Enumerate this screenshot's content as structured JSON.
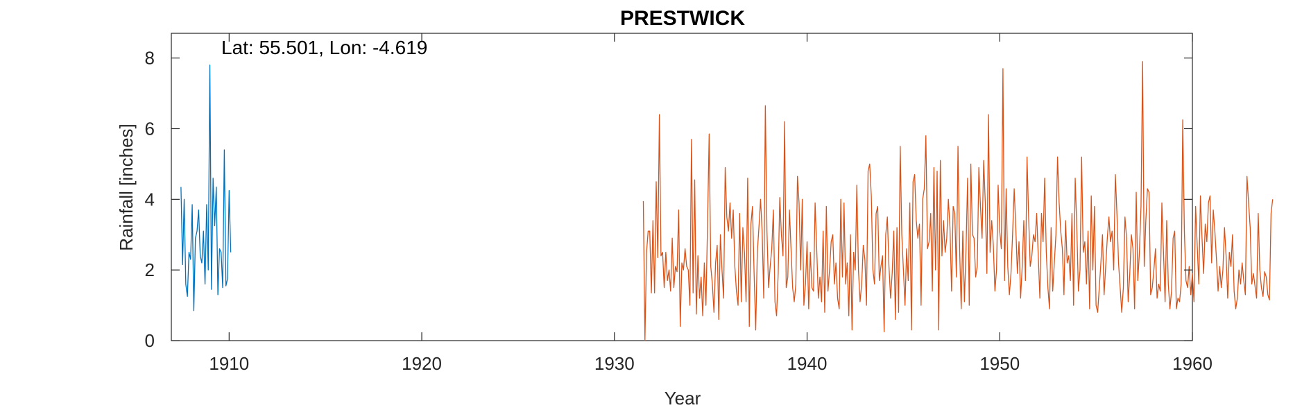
{
  "chart_data": {
    "type": "line",
    "title": "PRESTWICK",
    "xlabel": "Year",
    "ylabel": "Rainfall [inches]",
    "annotation": "Lat: 55.501, Lon: -4.619",
    "xlim": [
      1907,
      1960
    ],
    "ylim": [
      0,
      8.7
    ],
    "xticks": [
      1910,
      1920,
      1930,
      1940,
      1950,
      1960
    ],
    "yticks": [
      0,
      2,
      4,
      6,
      8
    ],
    "grid": false,
    "colors": [
      "#0072BD",
      "#D95319"
    ],
    "series": [
      {
        "x_start": 1907.5,
        "x_step": 0.0833333,
        "values": [
          4.35,
          2.15,
          4.0,
          1.6,
          1.25,
          2.5,
          2.3,
          3.85,
          0.85,
          2.9,
          3.1,
          3.7,
          2.4,
          2.2,
          3.1,
          1.6,
          3.85,
          2.0,
          7.8,
          1.45,
          4.6,
          3.25,
          4.35,
          1.3,
          2.6,
          2.5,
          1.5,
          5.4,
          1.55,
          1.75,
          4.25,
          2.5
        ]
      },
      {
        "x_start": 1931.5,
        "x_step": 0.0833333,
        "values": [
          3.95,
          0.0,
          2.5,
          3.1,
          3.1,
          1.35,
          3.4,
          1.35,
          4.5,
          2.35,
          6.4,
          2.4,
          2.5,
          1.5,
          2.5,
          1.7,
          2.0,
          1.4,
          2.9,
          1.5,
          2.1,
          1.95,
          3.7,
          0.4,
          2.2,
          2.0,
          2.6,
          2.1,
          2.0,
          1.0,
          5.7,
          1.35,
          4.55,
          0.75,
          2.4,
          1.2,
          1.8,
          0.7,
          2.2,
          1.0,
          3.3,
          5.85,
          2.1,
          1.6,
          0.8,
          2.2,
          2.7,
          0.6,
          3.0,
          2.0,
          1.2,
          4.9,
          3.5,
          3.1,
          3.9,
          2.9,
          3.7,
          2.1,
          1.4,
          1.0,
          3.6,
          1.1,
          3.2,
          2.5,
          1.1,
          4.6,
          0.4,
          3.3,
          3.8,
          1.9,
          0.3,
          2.5,
          3.2,
          4.0,
          3.1,
          1.2,
          6.65,
          3.1,
          1.5,
          2.1,
          2.6,
          3.7,
          1.1,
          0.7,
          1.9,
          4.05,
          3.0,
          2.4,
          6.2,
          1.5,
          1.8,
          3.7,
          2.6,
          1.5,
          1.1,
          1.6,
          4.65,
          3.9,
          2.0,
          4.0,
          1.0,
          1.6,
          2.8,
          0.9,
          2.5,
          1.5,
          1.4,
          3.9,
          2.6,
          1.2,
          1.8,
          1.1,
          3.1,
          0.8,
          3.8,
          1.4,
          2.0,
          2.8,
          3.0,
          1.6,
          2.2,
          1.2,
          0.9,
          4.0,
          1.8,
          3.9,
          1.6,
          2.2,
          0.7,
          3.0,
          0.3,
          2.5,
          2.0,
          4.4,
          2.0,
          1.1,
          1.6,
          2.7,
          2.3,
          1.0,
          4.8,
          5.0,
          4.1,
          2.0,
          1.6,
          3.6,
          3.8,
          1.7,
          2.1,
          2.4,
          0.25,
          3.0,
          3.5,
          2.1,
          1.2,
          1.9,
          3.1,
          0.6,
          3.2,
          0.8,
          5.5,
          3.0,
          2.0,
          1.0,
          2.6,
          1.7,
          3.9,
          0.3,
          4.5,
          4.7,
          3.4,
          2.9,
          3.3,
          1.0,
          4.0,
          4.3,
          5.8,
          2.6,
          2.8,
          3.6,
          1.4,
          4.9,
          2.0,
          4.8,
          0.3,
          5.1,
          2.4,
          3.4,
          2.5,
          2.9,
          4.0,
          3.2,
          1.4,
          3.8,
          3.6,
          1.8,
          5.5,
          2.6,
          0.9,
          3.1,
          1.1,
          2.6,
          4.6,
          1.0,
          5.0,
          3.0,
          2.9,
          1.8,
          2.1,
          4.9,
          3.8,
          2.9,
          5.1,
          3.9,
          1.9,
          6.4,
          2.5,
          3.4,
          2.7,
          1.4,
          2.0,
          4.4,
          3.1,
          2.6,
          7.7,
          1.7,
          4.3,
          2.1,
          1.3,
          1.9,
          3.0,
          4.3,
          3.2,
          1.9,
          2.8,
          1.2,
          2.1,
          3.4,
          1.7,
          5.2,
          3.5,
          2.1,
          2.4,
          3.0,
          2.8,
          3.6,
          2.4,
          1.2,
          3.6,
          2.8,
          4.6,
          2.5,
          1.5,
          0.9,
          3.2,
          1.4,
          2.2,
          3.0,
          5.2,
          3.9,
          3.1,
          2.6,
          1.3,
          3.4,
          2.2,
          2.4,
          1.7,
          3.6,
          1.0,
          4.6,
          3.2,
          1.4,
          2.0,
          5.2,
          2.5,
          2.8,
          1.6,
          3.1,
          0.9,
          4.1,
          2.0,
          3.8,
          1.0,
          0.8,
          1.5,
          2.2,
          3.0,
          1.3,
          2.1,
          2.9,
          3.5,
          2.8,
          3.1,
          2.0,
          4.7,
          3.6,
          2.2,
          1.5,
          0.8,
          1.5,
          3.5,
          2.9,
          1.1,
          1.9,
          3.0,
          2.6,
          0.9,
          4.2,
          1.7,
          2.5,
          3.8,
          7.9,
          2.1,
          3.4,
          4.3,
          4.2,
          1.3,
          1.5,
          2.0,
          2.6,
          1.2,
          1.6,
          1.4,
          3.9,
          2.5,
          1.1,
          3.4,
          1.6,
          0.9,
          1.4,
          2.9,
          3.1,
          0.9,
          1.2,
          1.1,
          1.6,
          6.25,
          3.1,
          1.7,
          1.5,
          2.1,
          1.3,
          1.9,
          1.1,
          3.8,
          2.7,
          1.6,
          4.1,
          2.9,
          1.9,
          3.3,
          2.8,
          3.9,
          4.1,
          2.2,
          3.7,
          3.1,
          2.3,
          1.4,
          2.1,
          1.5,
          2.0,
          3.2,
          2.4,
          1.2,
          2.5,
          2.1,
          3.0,
          1.4,
          0.9,
          1.2,
          2.0,
          1.6,
          2.2,
          1.7,
          1.3,
          4.65,
          3.9,
          3.2,
          1.6,
          1.9,
          1.55,
          1.2,
          3.6,
          2.0,
          1.5,
          1.25,
          1.95,
          1.8,
          1.3,
          1.15,
          3.6,
          4.0
        ]
      }
    ]
  }
}
